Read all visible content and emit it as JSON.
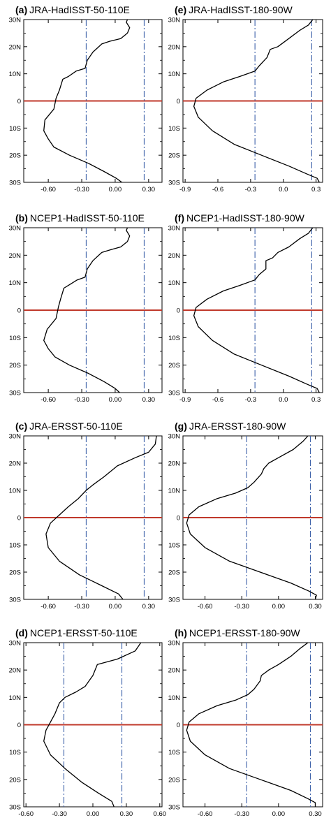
{
  "chart_data": [
    {
      "type": "line",
      "label": "(a)",
      "title": "JRA-HadISST-50-110E",
      "xlim": [
        -0.82,
        0.42
      ],
      "ylim": [
        -30,
        30
      ],
      "xticks": [
        -0.6,
        -0.3,
        0.0,
        0.3
      ],
      "xtick_labels": [
        "-0.60",
        "-0.30",
        "0.00",
        "0.30"
      ],
      "yticks": [
        30,
        20,
        10,
        0,
        -10,
        -20,
        -30
      ],
      "ytick_labels": [
        "30N",
        "20N",
        "10N",
        "0",
        "10S",
        "20S",
        "30S"
      ],
      "zero_line_color": "#c0392b",
      "threshold_color": "#3a5fa8",
      "thresholds": [
        -0.26,
        0.26
      ],
      "series": [
        {
          "x": [
            0.06,
            0.01,
            -0.1,
            -0.24,
            -0.41,
            -0.55,
            -0.6,
            -0.64,
            -0.63,
            -0.55,
            -0.53,
            -0.5,
            -0.47,
            -0.42,
            -0.35,
            -0.27,
            -0.25,
            -0.2,
            -0.12,
            -0.05,
            0.05,
            0.11,
            0.13,
            0.1,
            0.11
          ],
          "y": [
            -30,
            -28.5,
            -26,
            -23,
            -20,
            -17,
            -14,
            -11,
            -7,
            -3,
            1,
            4,
            8,
            9,
            11,
            12,
            15,
            18,
            21,
            22,
            23,
            25,
            27,
            29,
            30
          ]
        }
      ]
    },
    {
      "type": "line",
      "label": "(b)",
      "title": "NCEP1-HadISST-50-110E",
      "xlim": [
        -0.82,
        0.42
      ],
      "ylim": [
        -30,
        30
      ],
      "xticks": [
        -0.6,
        -0.3,
        0.0,
        0.3
      ],
      "xtick_labels": [
        "-0.60",
        "-0.30",
        "0.00",
        "0.30"
      ],
      "yticks": [
        30,
        20,
        10,
        0,
        -10,
        -20,
        -30
      ],
      "ytick_labels": [
        "30N",
        "20N",
        "10N",
        "0",
        "10S",
        "20S",
        "30S"
      ],
      "zero_line_color": "#c0392b",
      "threshold_color": "#3a5fa8",
      "thresholds": [
        -0.26,
        0.26
      ],
      "series": [
        {
          "x": [
            0.04,
            0.0,
            -0.1,
            -0.24,
            -0.41,
            -0.54,
            -0.6,
            -0.64,
            -0.61,
            -0.53,
            -0.51,
            -0.49,
            -0.46,
            -0.42,
            -0.34,
            -0.27,
            -0.25,
            -0.2,
            -0.12,
            -0.04,
            0.05,
            0.11,
            0.13,
            0.1,
            0.11
          ],
          "y": [
            -30,
            -28.5,
            -26,
            -23,
            -20,
            -17,
            -14,
            -11,
            -7,
            -3,
            1,
            4,
            8,
            9,
            11,
            12,
            15,
            18,
            21,
            22,
            23,
            25,
            27,
            29,
            30
          ]
        }
      ]
    },
    {
      "type": "line",
      "label": "(c)",
      "title": "JRA-ERSST-50-110E",
      "xlim": [
        -0.82,
        0.42
      ],
      "ylim": [
        -30,
        30
      ],
      "xticks": [
        -0.6,
        -0.3,
        0.0,
        0.3
      ],
      "xtick_labels": [
        "-0.60",
        "-0.30",
        "0.00",
        "0.30"
      ],
      "yticks": [
        30,
        20,
        10,
        0,
        -10,
        -20,
        -30
      ],
      "ytick_labels": [
        "30N",
        "20N",
        "10N",
        "0",
        "10S",
        "20S",
        "30S"
      ],
      "zero_line_color": "#c0392b",
      "threshold_color": "#3a5fa8",
      "thresholds": [
        -0.26,
        0.26
      ],
      "series": [
        {
          "x": [
            0.07,
            0.03,
            -0.12,
            -0.32,
            -0.5,
            -0.6,
            -0.62,
            -0.58,
            -0.5,
            -0.42,
            -0.33,
            -0.26,
            -0.2,
            -0.1,
            0.02,
            0.18,
            0.3,
            0.36,
            0.37
          ],
          "y": [
            -30,
            -28,
            -25,
            -21,
            -16,
            -11,
            -6,
            -2,
            1,
            4,
            7,
            10,
            12,
            15,
            19,
            22,
            24,
            27,
            30
          ]
        }
      ]
    },
    {
      "type": "line",
      "label": "(d)",
      "title": "NCEP1-ERSST-50-110E",
      "xlim": [
        -0.62,
        0.62
      ],
      "ylim": [
        -30,
        30
      ],
      "xticks": [
        -0.6,
        -0.3,
        0.0,
        0.3,
        0.6
      ],
      "xtick_labels": [
        "-0.60",
        "-0.30",
        "0.00",
        "0.30",
        "0.60"
      ],
      "yticks": [
        30,
        20,
        10,
        0,
        -10,
        -20,
        -30
      ],
      "ytick_labels": [
        "30N",
        "20N",
        "10N",
        "0",
        "10S",
        "20S",
        "30S"
      ],
      "zero_line_color": "#c0392b",
      "threshold_color": "#3a5fa8",
      "thresholds": [
        -0.26,
        0.26
      ],
      "series": [
        {
          "x": [
            0.19,
            0.17,
            0.05,
            -0.1,
            -0.25,
            -0.38,
            -0.44,
            -0.42,
            -0.38,
            -0.34,
            -0.3,
            -0.25,
            -0.15,
            -0.07,
            0.0,
            0.04,
            0.22,
            0.38,
            0.43
          ],
          "y": [
            -30,
            -28,
            -25,
            -21,
            -16,
            -11,
            -6,
            -2,
            1,
            4,
            8,
            10,
            12,
            14,
            18,
            22,
            24,
            27,
            30
          ]
        }
      ]
    },
    {
      "type": "line",
      "label": "(e)",
      "title": "JRA-HadISST-180-90W",
      "xlim": [
        -0.92,
        0.36
      ],
      "ylim": [
        -30,
        30
      ],
      "xticks": [
        -0.9,
        -0.6,
        -0.3,
        0.0,
        0.3
      ],
      "xtick_labels": [
        "-0.9",
        "-0.6",
        "-0.3",
        "0.0",
        "0.3"
      ],
      "yticks": [
        30,
        20,
        10,
        0,
        -10,
        -20,
        -30
      ],
      "ytick_labels": [
        "30N",
        "20N",
        "10N",
        "0",
        "10S",
        "20S",
        "30S"
      ],
      "zero_line_color": "#c0392b",
      "threshold_color": "#3a5fa8",
      "thresholds": [
        -0.26,
        0.26
      ],
      "series": [
        {
          "x": [
            0.33,
            0.31,
            0.22,
            0.05,
            -0.2,
            -0.45,
            -0.65,
            -0.78,
            -0.82,
            -0.8,
            -0.7,
            -0.55,
            -0.4,
            -0.26,
            -0.22,
            -0.15,
            -0.12,
            -0.05,
            0.05,
            0.15,
            0.23,
            0.27
          ],
          "y": [
            -30,
            -28.5,
            -27,
            -24,
            -20,
            -16,
            -11,
            -6,
            -2,
            1,
            4,
            7,
            9,
            11,
            13,
            16,
            19,
            20,
            23,
            26,
            28,
            30
          ]
        }
      ]
    },
    {
      "type": "line",
      "label": "(f)",
      "title": "NCEP1-HadISST-180-90W",
      "xlim": [
        -0.92,
        0.36
      ],
      "ylim": [
        -30,
        30
      ],
      "xticks": [
        -0.9,
        -0.6,
        -0.3,
        0.0,
        0.3
      ],
      "xtick_labels": [
        "-0.9",
        "-0.6",
        "-0.3",
        "0.0",
        "0.3"
      ],
      "yticks": [
        30,
        20,
        10,
        0,
        -10,
        -20,
        -30
      ],
      "ytick_labels": [
        "30N",
        "20N",
        "10N",
        "0",
        "10S",
        "20S",
        "30S"
      ],
      "zero_line_color": "#c0392b",
      "threshold_color": "#3a5fa8",
      "thresholds": [
        -0.26,
        0.26
      ],
      "series": [
        {
          "x": [
            0.33,
            0.31,
            0.22,
            0.05,
            -0.2,
            -0.45,
            -0.65,
            -0.78,
            -0.82,
            -0.8,
            -0.7,
            -0.55,
            -0.4,
            -0.26,
            -0.22,
            -0.16,
            -0.16,
            -0.1,
            -0.05,
            0.05,
            0.15,
            0.23,
            0.27
          ],
          "y": [
            -30,
            -28.5,
            -27,
            -24,
            -20,
            -16,
            -11,
            -6,
            -2,
            1,
            4,
            7,
            9,
            11,
            13,
            15,
            18,
            19,
            21,
            23,
            26,
            28,
            30
          ]
        }
      ]
    },
    {
      "type": "line",
      "label": "(g)",
      "title": "JRA-ERSST-180-90W",
      "xlim": [
        -0.78,
        0.36
      ],
      "ylim": [
        -30,
        30
      ],
      "xticks": [
        -0.6,
        -0.3,
        0.0,
        0.3
      ],
      "xtick_labels": [
        "-0.60",
        "-0.30",
        "0.00",
        "0.30"
      ],
      "yticks": [
        30,
        20,
        10,
        0,
        -10,
        -20,
        -30
      ],
      "ytick_labels": [
        "30N",
        "20N",
        "10N",
        "0",
        "10S",
        "20S",
        "30S"
      ],
      "zero_line_color": "#c0392b",
      "threshold_color": "#3a5fa8",
      "thresholds": [
        -0.26,
        0.26
      ],
      "series": [
        {
          "x": [
            0.3,
            0.31,
            0.25,
            0.1,
            -0.15,
            -0.4,
            -0.6,
            -0.72,
            -0.75,
            -0.73,
            -0.65,
            -0.5,
            -0.35,
            -0.25,
            -0.2,
            -0.14,
            -0.12,
            -0.08,
            0.0,
            0.12,
            0.2,
            0.24
          ],
          "y": [
            -30,
            -28.5,
            -27,
            -24,
            -20,
            -16,
            -11,
            -6,
            -2,
            1,
            4,
            7,
            9,
            11,
            13,
            16,
            18,
            20,
            22,
            25,
            28,
            30
          ]
        }
      ]
    },
    {
      "type": "line",
      "label": "(h)",
      "title": "NCEP1-ERSST-180-90W",
      "xlim": [
        -0.78,
        0.36
      ],
      "ylim": [
        -30,
        30
      ],
      "xticks": [
        -0.6,
        -0.3,
        0.0,
        0.3
      ],
      "xtick_labels": [
        "-0.60",
        "-0.30",
        "0.00",
        "0.30"
      ],
      "yticks": [
        30,
        20,
        10,
        0,
        -10,
        -20,
        -30
      ],
      "ytick_labels": [
        "30N",
        "20N",
        "10N",
        "0",
        "10S",
        "20S",
        "30S"
      ],
      "zero_line_color": "#c0392b",
      "threshold_color": "#3a5fa8",
      "thresholds": [
        -0.26,
        0.26
      ],
      "series": [
        {
          "x": [
            0.3,
            0.3,
            0.24,
            0.1,
            -0.15,
            -0.4,
            -0.6,
            -0.72,
            -0.75,
            -0.73,
            -0.65,
            -0.5,
            -0.35,
            -0.25,
            -0.2,
            -0.15,
            -0.14,
            -0.08,
            0.0,
            0.1,
            0.18,
            0.24
          ],
          "y": [
            -30,
            -28.5,
            -27,
            -24,
            -20,
            -16,
            -11,
            -6,
            -2,
            1,
            4,
            7,
            9,
            11,
            13,
            16,
            18,
            20,
            22,
            25,
            28,
            30
          ]
        }
      ]
    }
  ]
}
